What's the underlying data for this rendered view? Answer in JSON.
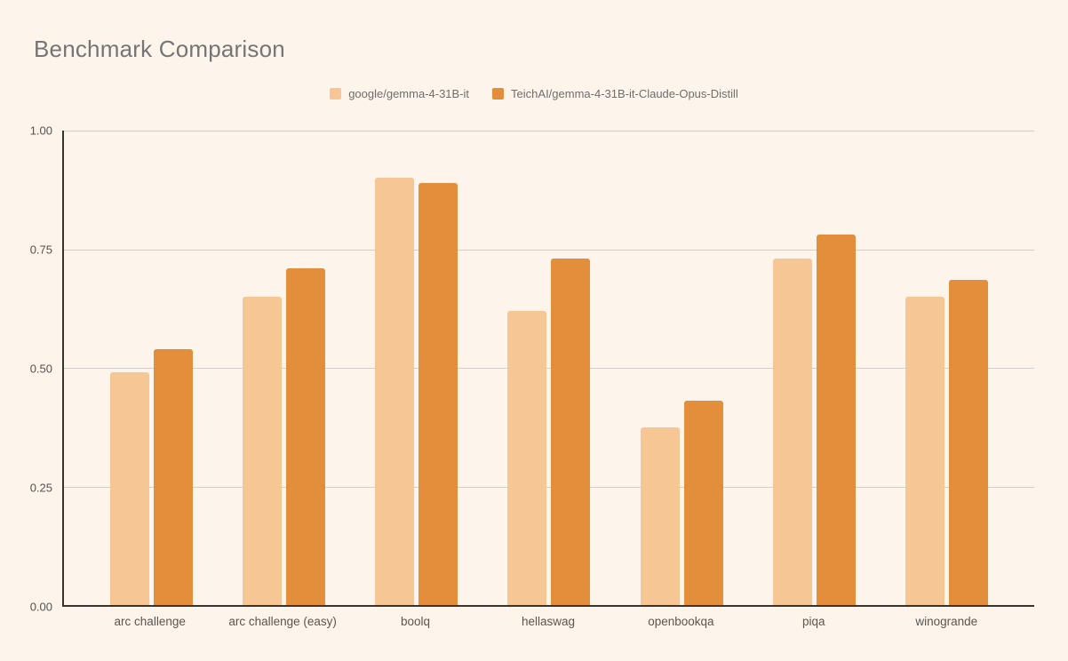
{
  "header": {
    "title": "Benchmark Comparison"
  },
  "colors": {
    "background": "#FDF4EB",
    "title_text": "#757575",
    "axis_line": "#37332F",
    "gridline": "#D2CEC8",
    "tick_label_text": "#56524E",
    "legend_text": "#6E6E6E",
    "series1": "#F6C795",
    "series2": "#E28E3A"
  },
  "chart_data": {
    "type": "bar",
    "title": "Benchmark Comparison",
    "categories": [
      "arc challenge",
      "arc challenge (easy)",
      "boolq",
      "hellaswag",
      "openbookqa",
      "piqa",
      "winogrande"
    ],
    "series": [
      {
        "name": "google/gemma-4-31B-it",
        "color": "#F6C795",
        "values": [
          0.49,
          0.65,
          0.9,
          0.62,
          0.375,
          0.73,
          0.65
        ]
      },
      {
        "name": "TeichAI/gemma-4-31B-it-Claude-Opus-Distill",
        "color": "#E28E3A",
        "values": [
          0.54,
          0.71,
          0.89,
          0.73,
          0.43,
          0.78,
          0.685
        ]
      }
    ],
    "xlabel": "",
    "ylabel": "",
    "ylim": [
      0,
      1
    ],
    "yticks": [
      0.0,
      0.25,
      0.5,
      0.75,
      1.0
    ],
    "ytick_labels": [
      "0.00",
      "0.25",
      "0.50",
      "0.75",
      "1.00"
    ],
    "grid": true,
    "legend_position": "top-center",
    "bar_corner_radius_px": 3
  }
}
